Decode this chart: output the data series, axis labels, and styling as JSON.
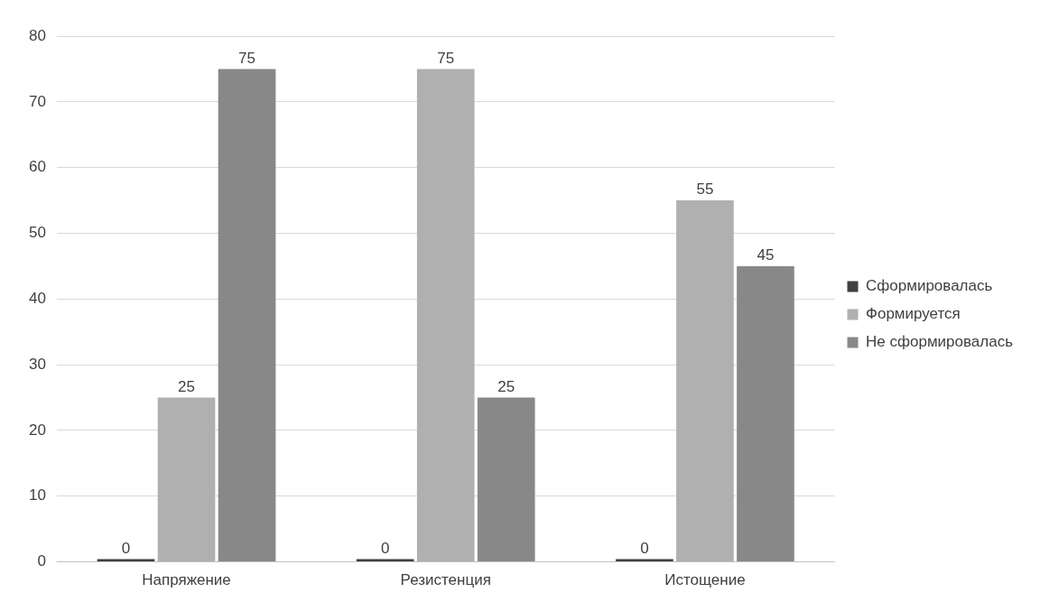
{
  "chart_data": {
    "type": "bar",
    "categories": [
      "Напряжение",
      "Резистенция",
      "Истощение"
    ],
    "series": [
      {
        "name": "Сформировалась",
        "color": "#404040",
        "values": [
          0,
          0,
          0
        ]
      },
      {
        "name": "Формируется",
        "color": "#b0b0b0",
        "values": [
          25,
          75,
          55
        ]
      },
      {
        "name": "Не сформировалась",
        "color": "#888888",
        "values": [
          75,
          25,
          45
        ]
      }
    ],
    "ylim": [
      0,
      80
    ],
    "yticks": [
      0,
      10,
      20,
      30,
      40,
      50,
      60,
      70,
      80
    ],
    "grid": "y",
    "legend": "right",
    "data_labels": true
  }
}
